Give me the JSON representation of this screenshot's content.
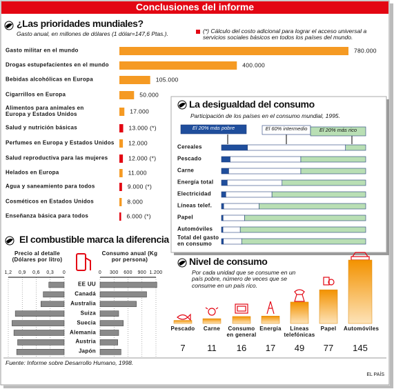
{
  "title": "Conclusiones del informe",
  "chart_data": [
    {
      "type": "hbar",
      "title": "¿Las prioridades mundiales?",
      "subtitle": "Gasto anual, en millones de dólares (1 dólar=147,6 Ptas.).",
      "note": "(*) Cálculo del costo adicional para lograr el acceso universal a servicios sociales básicos en todos los países del mundo.",
      "categories": [
        "Gasto militar en el mundo",
        "Drogas estupefacientes en el mundo",
        "Bebidas alcohólicas en Europa",
        "Cigarrillos en Europa",
        "Alimentos para animales en Europa y Estados Unidos",
        "Salud y nutrición básicas",
        "Perfumes en Europa y Estados Unidos",
        "Salud reproductiva para las mujeres",
        "Helados en Europa",
        "Agua y saneamiento para todos",
        "Cosméticos en Estados Unidos",
        "Enseñanza básica para todos"
      ],
      "values": [
        780000,
        400000,
        105000,
        50000,
        17000,
        13000,
        12000,
        12000,
        11000,
        9000,
        8000,
        6000
      ],
      "value_labels": [
        "780.000",
        "400.000",
        "105.000",
        "50.000",
        "17.000",
        "13.000 (*)",
        "12.000",
        "12.000 (*)",
        "11.000",
        "9.000 (*)",
        "8.000",
        "6.000 (*)"
      ],
      "colors": [
        "#f59a23",
        "#f59a23",
        "#f59a23",
        "#f59a23",
        "#f59a23",
        "#e30613",
        "#f59a23",
        "#e30613",
        "#f59a23",
        "#e30613",
        "#f59a23",
        "#e30613"
      ]
    },
    {
      "type": "stacked_hbar",
      "title": "La desigualdad del consumo",
      "subtitle": "Participación de los países en el consumo mundial, 1995.",
      "categories": [
        "Cereales",
        "Pescado",
        "Carne",
        "Energía total",
        "Electricidad",
        "Líneas telef.",
        "Papel",
        "Automóviles",
        "Total del gasto en consumo"
      ],
      "series": [
        {
          "name": "El 20% más pobre",
          "color": "#1f4e9c",
          "values": [
            18,
            6,
            5,
            4,
            3,
            1.5,
            1.1,
            1,
            1.3
          ]
        },
        {
          "name": "El 60% intermedio",
          "color": "#ffffff",
          "values": [
            68,
            49,
            50,
            38,
            32,
            24.5,
            14.9,
            12,
            12.7
          ]
        },
        {
          "name": "El 20% más rico",
          "color": "#b9dfb4",
          "values": [
            14,
            45,
            45,
            58,
            65,
            74,
            84,
            87,
            86
          ]
        }
      ]
    },
    {
      "type": "butterfly",
      "title": "El combustible marca la diferencia",
      "categories": [
        "EE UU",
        "Canadá",
        "Australia",
        "Suiza",
        "Suecia",
        "Alemania",
        "Austria",
        "Japón"
      ],
      "series": [
        {
          "name": "Precio al detalle (Dólares por litro)",
          "color": "#8a8a8a",
          "values": [
            0.33,
            0.45,
            0.5,
            1.05,
            1.12,
            1.08,
            1.0,
            1.02
          ],
          "xlim": [
            0,
            1.2
          ],
          "xticks": [
            {
              "value": 1.2,
              "label": "1,2"
            },
            {
              "value": 0.9,
              "label": "0,9"
            },
            {
              "value": 0.6,
              "label": "0,6"
            },
            {
              "value": 0.3,
              "label": "0,3"
            },
            0
          ]
        },
        {
          "name": "Consumo anual (Kg por persona)",
          "color": "#8a8a8a",
          "values": [
            1220,
            1000,
            780,
            400,
            500,
            400,
            380,
            450
          ],
          "xlim": [
            0,
            1200
          ],
          "xticks": [
            0,
            300,
            600,
            900,
            {
              "value": 1200,
              "label": "1.200"
            }
          ]
        }
      ]
    },
    {
      "type": "vbar",
      "title": "Nivel de consumo",
      "subtitle": "Por cada unidad que se consume en un país pobre, número de veces que se consume en un país rico.",
      "categories": [
        "Pescado",
        "Carne",
        "Consumo en general",
        "Energía",
        "Líneas telefónicas",
        "Papel",
        "Automóviles"
      ],
      "values": [
        7,
        11,
        16,
        17,
        49,
        77,
        145
      ],
      "color": "#f39200"
    }
  ],
  "source": "Fuente: Informe sobre Desarrollo Humano, 1998.",
  "credit": "EL PAÍS"
}
